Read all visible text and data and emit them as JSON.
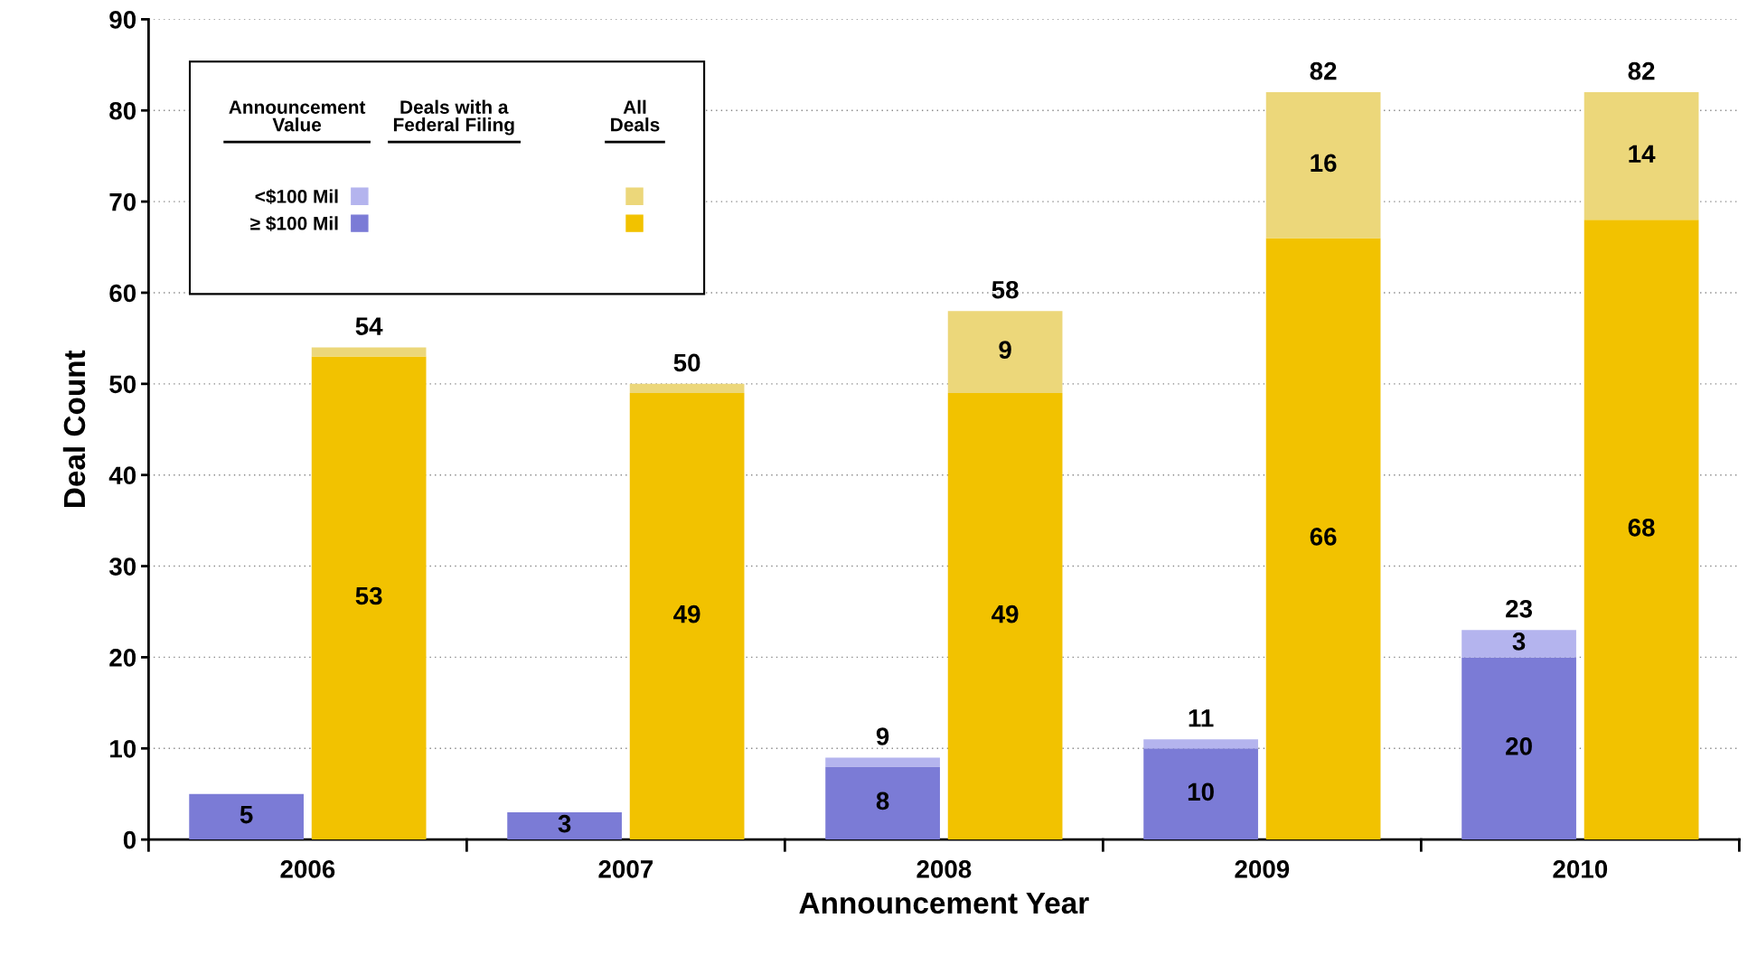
{
  "chart_data": {
    "type": "bar",
    "stacked": true,
    "xlabel": "Announcement Year",
    "ylabel": "Deal Count",
    "categories": [
      null,
      null,
      null,
      null,
      null,
      null,
      null,
      null,
      null,
      null
    ],
    "annotations": [
      "2006",
      "2007",
      "2008",
      "2009",
      "2010",
      "Deals with a Federal Filing",
      "All Deals"
    ],
    "ylim": [
      0,
      90
    ],
    "yticks": [
      0,
      10,
      20,
      30,
      40,
      50,
      60,
      70,
      80,
      90
    ],
    "grid": "y",
    "legend": "top left",
    "legend_title": "Announcement Value",
    "totals": [
      null,
      "54",
      null,
      "50",
      "9",
      "58",
      "11",
      "82",
      "23",
      "82"
    ],
    "series": [
      {
        "name": "≥ $100 Mil",
        "color": "#7b7bd6",
        "values": [
          5,
          null,
          3,
          null,
          8,
          null,
          10,
          null,
          20,
          null
        ],
        "value_labels": [
          "5",
          null,
          "3",
          null,
          "8",
          null,
          "10",
          null,
          "20",
          null
        ]
      },
      {
        "name": "<$100 Mil",
        "color": "#b4b4ee",
        "values": [
          null,
          null,
          null,
          null,
          1,
          null,
          1,
          null,
          3,
          null
        ],
        "value_labels": [
          null,
          null,
          null,
          null,
          null,
          null,
          null,
          null,
          "3",
          null
        ]
      },
      {
        "color": "#f2c200",
        "values": [
          null,
          53,
          null,
          49,
          null,
          49,
          null,
          66,
          null,
          68
        ],
        "value_labels": [
          null,
          "53",
          null,
          "49",
          null,
          "49",
          null,
          "66",
          null,
          "68"
        ]
      },
      {
        "color": "#ecd77a",
        "values": [
          null,
          1,
          null,
          1,
          null,
          9,
          null,
          16,
          null,
          14
        ],
        "value_labels": [
          null,
          null,
          null,
          null,
          null,
          "9",
          null,
          "16",
          null,
          "14"
        ]
      }
    ]
  }
}
